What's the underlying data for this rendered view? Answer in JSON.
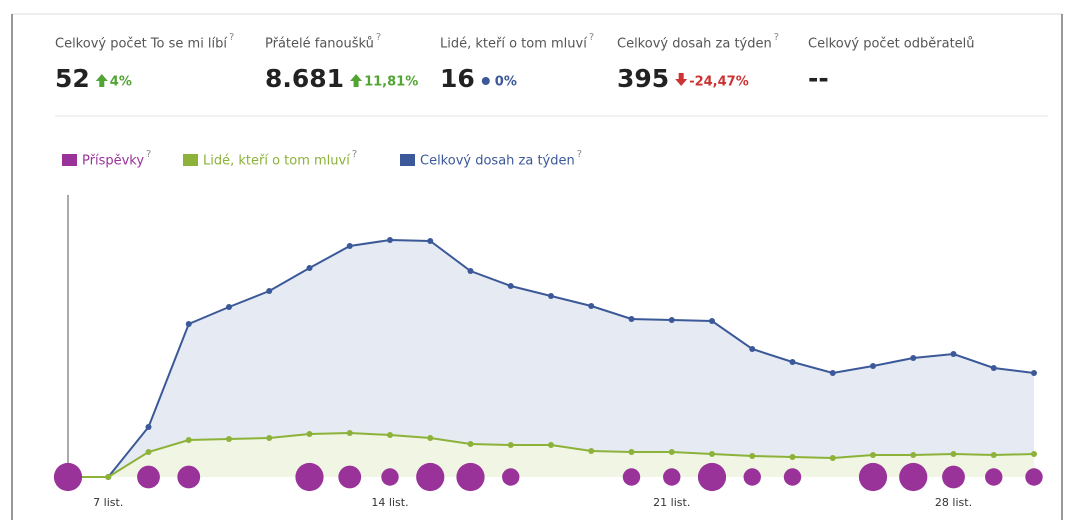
{
  "stats": [
    {
      "label": "Celkový počet To se mi líbí",
      "help": "?",
      "value": "52",
      "change": "4%",
      "trend": "up"
    },
    {
      "label": "Přátelé fanoušků",
      "help": "?",
      "value": "8.681",
      "change": "11,81%",
      "trend": "up"
    },
    {
      "label": "Lidé, kteří o tom mluví",
      "help": "?",
      "value": "16",
      "change": "0%",
      "trend": "flat"
    },
    {
      "label": "Celkový dosah za týden",
      "help": "?",
      "value": "395",
      "change": "-24,47%",
      "trend": "down"
    },
    {
      "label": "Celkový počet odběratelů",
      "value": "--"
    }
  ],
  "chart_data": {
    "type": "line",
    "categories": [
      null,
      "7 list.",
      null,
      null,
      null,
      null,
      null,
      null,
      "14 list.",
      null,
      null,
      null,
      null,
      null,
      null,
      "21 list.",
      null,
      null,
      null,
      null,
      null,
      null,
      "28 list.",
      null,
      null
    ],
    "ylim": [
      0,
      290
    ],
    "series": [
      {
        "name": "Příspěvky",
        "help": "?",
        "color": "#993399",
        "kind": "bubble",
        "values": [
          3,
          0,
          2,
          2,
          0,
          0,
          3,
          2,
          1,
          3,
          3,
          1,
          0,
          0,
          1,
          1,
          3,
          1,
          1,
          0,
          3,
          3,
          2,
          1,
          1
        ]
      },
      {
        "name": "Lidé, kteří o tom mluví",
        "help": "?",
        "color": "#8cb23a",
        "fill": "#f1f5e4",
        "values": [
          0,
          0,
          25,
          37,
          38,
          39,
          43,
          44,
          42,
          39,
          33,
          32,
          32,
          26,
          25,
          25,
          23,
          21,
          20,
          19,
          22,
          22,
          23,
          22,
          23
        ]
      },
      {
        "name": "Celkový dosah za týden",
        "help": "?",
        "color": "#3b5998",
        "fill": "#e6eaf3",
        "values": [
          0,
          0,
          50,
          153,
          170,
          186,
          209,
          231,
          237,
          236,
          206,
          191,
          181,
          171,
          158,
          157,
          156,
          128,
          115,
          104,
          111,
          119,
          123,
          109,
          104
        ]
      }
    ]
  }
}
